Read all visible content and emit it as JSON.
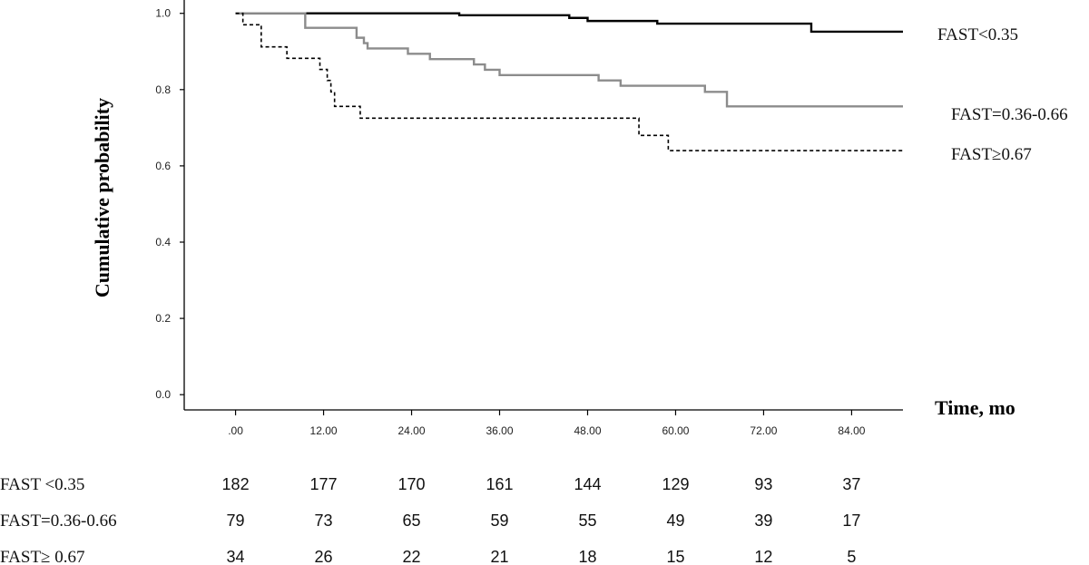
{
  "chart_data": {
    "type": "line",
    "step": true,
    "xlabel": "Time, mo",
    "ylabel": "Cumulative probability",
    "xlim": [
      -7,
      91
    ],
    "ylim": [
      -0.04,
      1.035
    ],
    "xticks": [
      0,
      12,
      24,
      36,
      48,
      60,
      72,
      84
    ],
    "xtick_labels": [
      ".00",
      "12.00",
      "24.00",
      "36.00",
      "48.00",
      "60.00",
      "72.00",
      "84.00"
    ],
    "yticks": [
      0.0,
      0.2,
      0.4,
      0.6,
      0.8,
      1.0
    ],
    "ytick_labels": [
      "0.0",
      "0.2",
      "0.4",
      "0.6",
      "0.8",
      "1.0"
    ],
    "grid": false,
    "series": [
      {
        "name": "FAST<0.35",
        "color": "#000000",
        "style": "solid",
        "points": [
          [
            0,
            1.0
          ],
          [
            30.5,
            0.995
          ],
          [
            45.5,
            0.988
          ],
          [
            48,
            0.98
          ],
          [
            57.5,
            0.973
          ],
          [
            78.5,
            0.952
          ],
          [
            92,
            0.952
          ]
        ]
      },
      {
        "name": "FAST=0.36-0.66",
        "color": "#8c8c8c",
        "style": "solid",
        "points": [
          [
            0,
            1.0
          ],
          [
            9.5,
            0.962
          ],
          [
            16.5,
            0.936
          ],
          [
            17.5,
            0.922
          ],
          [
            18,
            0.908
          ],
          [
            23.5,
            0.894
          ],
          [
            26.5,
            0.88
          ],
          [
            32.5,
            0.866
          ],
          [
            34,
            0.852
          ],
          [
            36,
            0.838
          ],
          [
            49.5,
            0.824
          ],
          [
            52.5,
            0.81
          ],
          [
            64,
            0.794
          ],
          [
            67,
            0.756
          ],
          [
            92,
            0.756
          ]
        ]
      },
      {
        "name": "FAST≥0.67",
        "color": "#000000",
        "style": "dashed",
        "points": [
          [
            0,
            1.0
          ],
          [
            1,
            0.97
          ],
          [
            3.5,
            0.912
          ],
          [
            7,
            0.882
          ],
          [
            11.5,
            0.853
          ],
          [
            12.5,
            0.824
          ],
          [
            13,
            0.794
          ],
          [
            13.5,
            0.756
          ],
          [
            17,
            0.725
          ],
          [
            55,
            0.68
          ],
          [
            59,
            0.64
          ],
          [
            92,
            0.64
          ]
        ]
      }
    ],
    "risk_table": {
      "rows": [
        {
          "label": "FAST <0.35",
          "values": [
            "182",
            "177",
            "170",
            "161",
            "144",
            "129",
            "93",
            "37"
          ]
        },
        {
          "label": "FAST=0.36-0.66",
          "values": [
            "79",
            "73",
            "65",
            "59",
            "55",
            "49",
            "39",
            "17"
          ]
        },
        {
          "label": "FAST≥ 0.67",
          "values": [
            "34",
            "26",
            "22",
            "21",
            "18",
            "15",
            "12",
            "5"
          ]
        }
      ]
    }
  }
}
